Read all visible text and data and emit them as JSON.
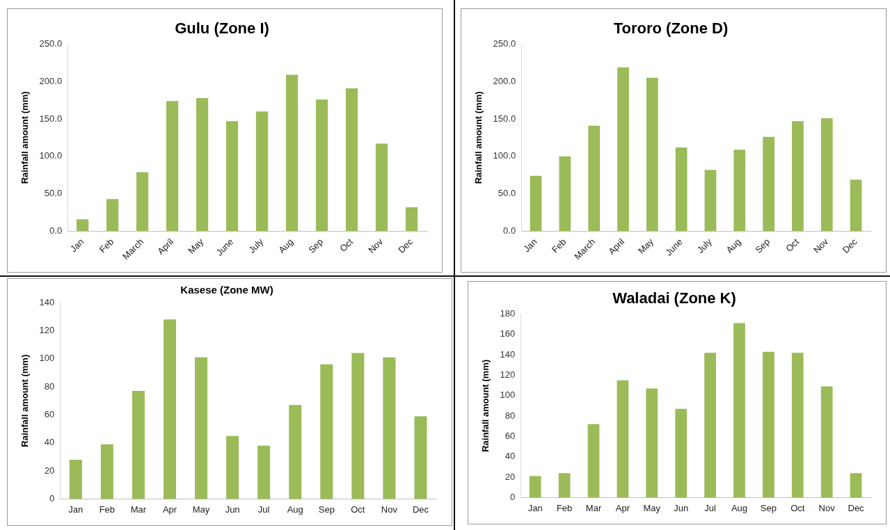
{
  "chart_data": [
    {
      "type": "bar",
      "title": "Gulu (Zone I)",
      "ylabel": "Rainfall amount (mm)",
      "categories": [
        "Jan",
        "Feb",
        "March",
        "April",
        "May",
        "June",
        "July",
        "Aug",
        "Sep",
        "Oct",
        "Nov",
        "Dec"
      ],
      "values": [
        16,
        43,
        79,
        174,
        178,
        147,
        160,
        209,
        176,
        191,
        117,
        32
      ],
      "color": "#9bbb59",
      "ylim": [
        0,
        250
      ],
      "yticks": [
        {
          "value": 0,
          "label": "0.0"
        },
        {
          "value": 50,
          "label": "50.0"
        },
        {
          "value": 100,
          "label": "100.0"
        },
        {
          "value": 150,
          "label": "150.0"
        },
        {
          "value": 200,
          "label": "200.0"
        },
        {
          "value": 250,
          "label": "250.0"
        }
      ],
      "grid": false,
      "legend": false
    },
    {
      "type": "bar",
      "title": "Tororo (Zone D)",
      "ylabel": "Rainfall amount (mm)",
      "categories": [
        "Jan",
        "Feb",
        "March",
        "April",
        "May",
        "June",
        "July",
        "Aug",
        "Sep",
        "Oct",
        "Nov",
        "Dec"
      ],
      "values": [
        74,
        100,
        141,
        219,
        205,
        112,
        82,
        109,
        126,
        147,
        151,
        69
      ],
      "color": "#9bbb59",
      "ylim": [
        0,
        250
      ],
      "yticks": [
        {
          "value": 0,
          "label": "0.0"
        },
        {
          "value": 50,
          "label": "50.0"
        },
        {
          "value": 100,
          "label": "100.0"
        },
        {
          "value": 150,
          "label": "150.0"
        },
        {
          "value": 200,
          "label": "200.0"
        },
        {
          "value": 250,
          "label": "250.0"
        }
      ],
      "grid": false,
      "legend": false
    },
    {
      "type": "bar",
      "title": "Kasese (Zone MW)",
      "ylabel": "Rainfall amount (mm)",
      "categories": [
        "Jan",
        "Feb",
        "Mar",
        "Apr",
        "May",
        "Jun",
        "Jul",
        "Aug",
        "Sep",
        "Oct",
        "Nov",
        "Dec"
      ],
      "values": [
        28,
        39,
        77,
        128,
        101,
        45,
        38,
        67,
        96,
        104,
        101,
        59
      ],
      "color": "#9bbb59",
      "ylim": [
        0,
        140
      ],
      "yticks": [
        0,
        20,
        40,
        60,
        80,
        100,
        120,
        140
      ],
      "grid": false,
      "legend": false
    },
    {
      "type": "bar",
      "title": "Waladai (Zone K)",
      "ylabel": "Rainfall amount (mm)",
      "categories": [
        "Jan",
        "Feb",
        "Mar",
        "Apr",
        "May",
        "Jun",
        "Jul",
        "Aug",
        "Sep",
        "Oct",
        "Nov",
        "Dec"
      ],
      "values": [
        21,
        24,
        72,
        115,
        107,
        87,
        142,
        171,
        143,
        142,
        109,
        24
      ],
      "color": "#9bbb59",
      "ylim": [
        0,
        180
      ],
      "yticks": [
        0,
        20,
        40,
        60,
        80,
        100,
        120,
        140,
        160,
        180
      ],
      "grid": false,
      "legend": false
    }
  ]
}
